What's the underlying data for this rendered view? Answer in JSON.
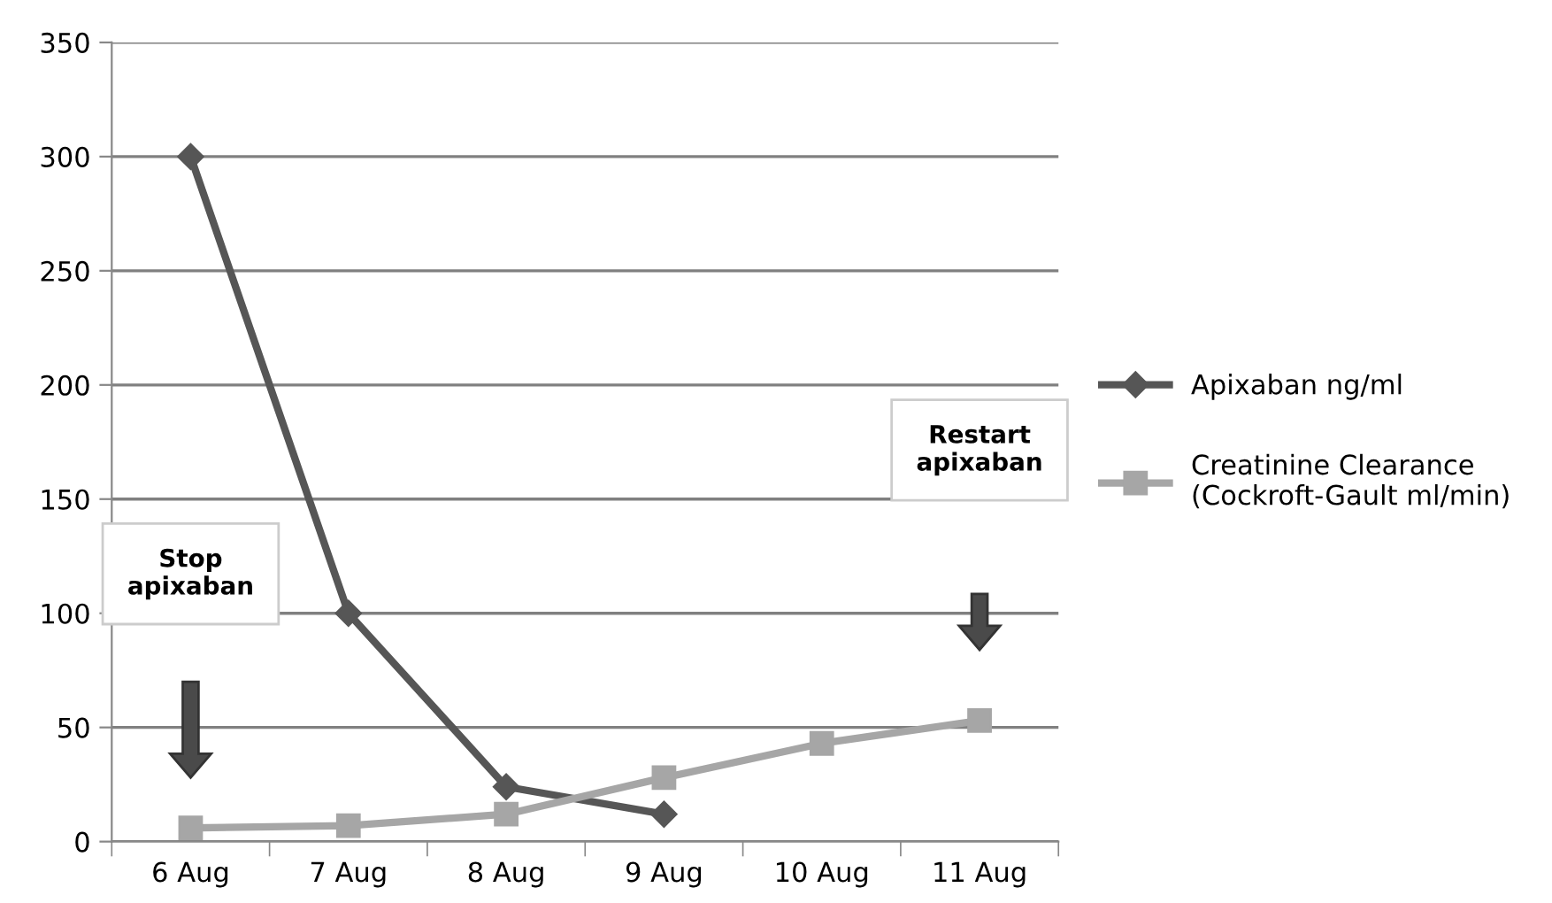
{
  "chart_data": {
    "type": "line",
    "categories": [
      "6 Aug",
      "7 Aug",
      "8 Aug",
      "9 Aug",
      "10 Aug",
      "11 Aug"
    ],
    "series": [
      {
        "name": "Apixaban ng/ml",
        "color": "#565656",
        "marker": "diamond",
        "values": [
          300,
          100,
          24,
          12,
          null,
          null
        ]
      },
      {
        "name": "Creatinine Clearance\n(Cockroft-Gault ml/min)",
        "color": "#a6a6a6",
        "marker": "square",
        "values": [
          6,
          7,
          12,
          28,
          43,
          53
        ]
      }
    ],
    "ylim": [
      0,
      350
    ],
    "yticks": [
      0,
      50,
      100,
      150,
      200,
      250,
      300,
      350
    ],
    "grid": "y",
    "legend": "right",
    "annotations": [
      "Stop\napixaban",
      "Restart\napixaban"
    ]
  }
}
